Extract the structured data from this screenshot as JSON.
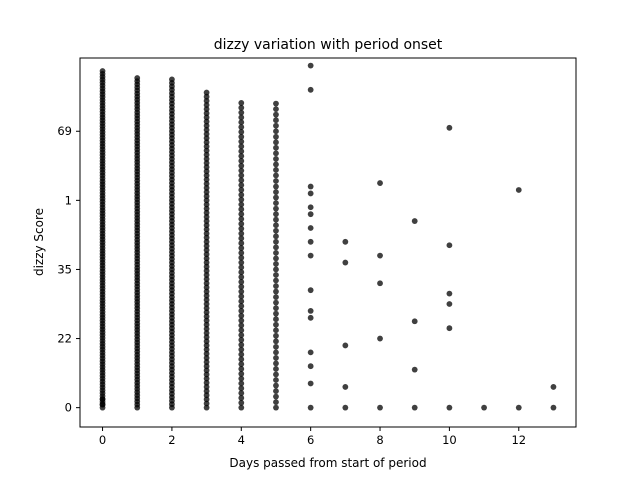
{
  "chart_data": {
    "type": "scatter",
    "title": "dizzy variation with period onset",
    "xlabel": "Days passed from start of period",
    "ylabel": "dizzy Score",
    "x_ticks": [
      0,
      2,
      4,
      6,
      8,
      10,
      12
    ],
    "x_tick_labels": [
      "0",
      "2",
      "4",
      "6",
      "8",
      "10",
      "12"
    ],
    "xlim": [
      -0.65,
      13.65
    ],
    "y_ticks": [
      0,
      1,
      2,
      3,
      4
    ],
    "y_tick_labels": [
      "0",
      "22",
      "35",
      "1",
      "69"
    ],
    "ylim": [
      -0.28,
      5.06
    ],
    "grid": false,
    "marker_color": "#000000",
    "columns": [
      {
        "x": 0,
        "min": 0,
        "max": 4.9,
        "step": 0.042
      },
      {
        "x": 1,
        "min": 0,
        "max": 4.8,
        "step": 0.045
      },
      {
        "x": 2,
        "min": 0,
        "max": 4.78,
        "step": 0.05
      },
      {
        "x": 3,
        "min": 0,
        "max": 4.6,
        "step": 0.06
      },
      {
        "x": 4,
        "min": 0,
        "max": 4.45,
        "step": 0.07
      },
      {
        "x": 5,
        "min": 0,
        "max": 4.45,
        "step": 0.08
      }
    ],
    "points": [
      [
        0,
        0.05
      ],
      [
        0,
        0.12
      ],
      [
        6,
        0
      ],
      [
        6,
        0.35
      ],
      [
        6,
        0.6
      ],
      [
        6,
        0.8
      ],
      [
        6,
        1.3
      ],
      [
        6,
        1.4
      ],
      [
        6,
        1.7
      ],
      [
        6,
        2.2
      ],
      [
        6,
        2.4
      ],
      [
        6,
        2.6
      ],
      [
        6,
        2.8
      ],
      [
        6,
        2.9
      ],
      [
        6,
        3.1
      ],
      [
        6,
        3.2
      ],
      [
        6,
        4.6
      ],
      [
        6,
        4.95
      ],
      [
        7,
        0
      ],
      [
        7,
        0.3
      ],
      [
        7,
        0.9
      ],
      [
        7,
        2.1
      ],
      [
        7,
        2.4
      ],
      [
        8,
        0
      ],
      [
        8,
        1.0
      ],
      [
        8,
        1.8
      ],
      [
        8,
        2.2
      ],
      [
        8,
        3.25
      ],
      [
        9,
        0
      ],
      [
        9,
        0.55
      ],
      [
        9,
        1.25
      ],
      [
        9,
        2.7
      ],
      [
        10,
        0
      ],
      [
        10,
        1.15
      ],
      [
        10,
        1.5
      ],
      [
        10,
        1.65
      ],
      [
        10,
        2.35
      ],
      [
        10,
        4.05
      ],
      [
        11,
        0
      ],
      [
        12,
        0
      ],
      [
        12,
        3.15
      ],
      [
        13,
        0
      ],
      [
        13,
        0.3
      ]
    ]
  }
}
